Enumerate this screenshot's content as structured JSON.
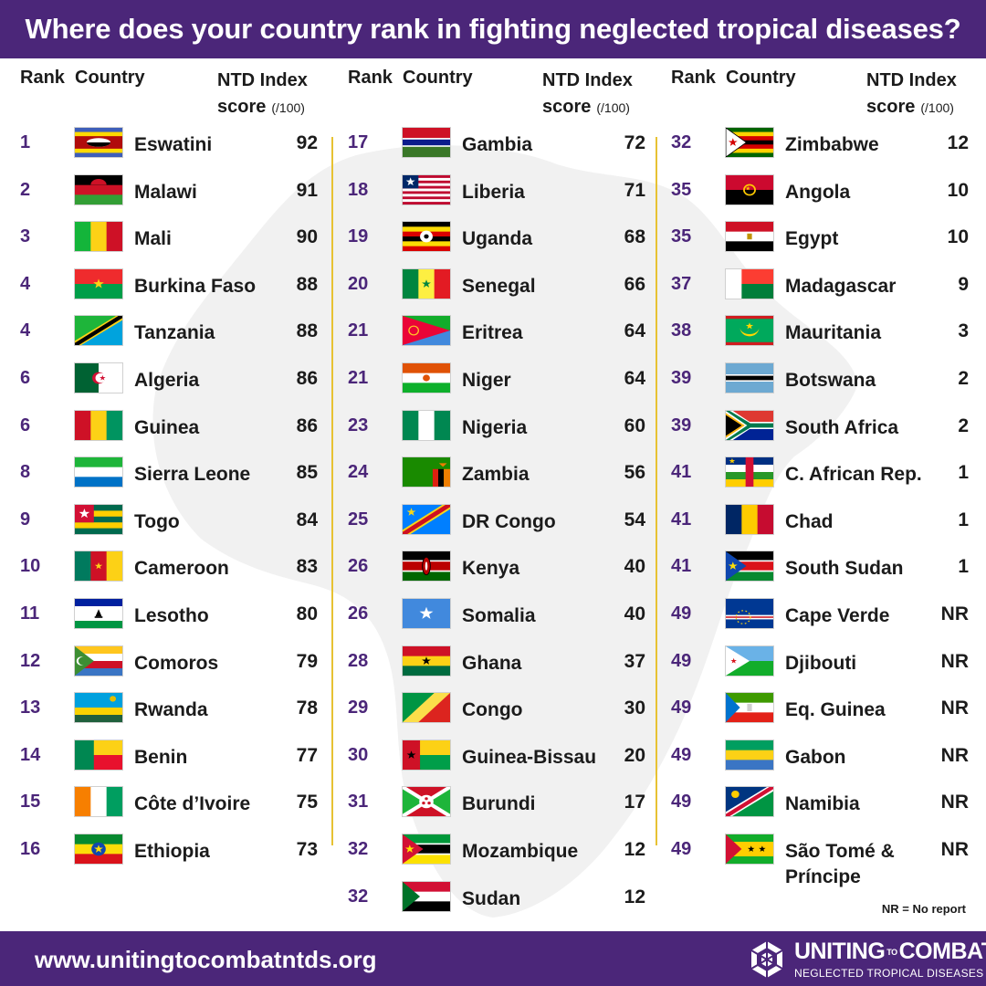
{
  "title": "Where does your country rank in fighting neglected tropical diseases?",
  "headers": {
    "rank": "Rank",
    "country": "Country",
    "score_line1": "NTD Index",
    "score_line2": "score",
    "score_unit": "(/100)"
  },
  "columns": [
    [
      {
        "rank": "1",
        "country": "Eswatini",
        "score": "92",
        "flag": "eswatini"
      },
      {
        "rank": "2",
        "country": "Malawi",
        "score": "91",
        "flag": "malawi"
      },
      {
        "rank": "3",
        "country": "Mali",
        "score": "90",
        "flag": "mali"
      },
      {
        "rank": "4",
        "country": "Burkina Faso",
        "score": "88",
        "flag": "burkina-faso"
      },
      {
        "rank": "4",
        "country": "Tanzania",
        "score": "88",
        "flag": "tanzania"
      },
      {
        "rank": "6",
        "country": "Algeria",
        "score": "86",
        "flag": "algeria"
      },
      {
        "rank": "6",
        "country": "Guinea",
        "score": "86",
        "flag": "guinea"
      },
      {
        "rank": "8",
        "country": "Sierra Leone",
        "score": "85",
        "flag": "sierra-leone"
      },
      {
        "rank": "9",
        "country": "Togo",
        "score": "84",
        "flag": "togo"
      },
      {
        "rank": "10",
        "country": "Cameroon",
        "score": "83",
        "flag": "cameroon"
      },
      {
        "rank": "11",
        "country": "Lesotho",
        "score": "80",
        "flag": "lesotho"
      },
      {
        "rank": "12",
        "country": "Comoros",
        "score": "79",
        "flag": "comoros"
      },
      {
        "rank": "13",
        "country": "Rwanda",
        "score": "78",
        "flag": "rwanda"
      },
      {
        "rank": "14",
        "country": "Benin",
        "score": "77",
        "flag": "benin"
      },
      {
        "rank": "15",
        "country": "Côte d’Ivoire",
        "score": "75",
        "flag": "cote-divoire"
      },
      {
        "rank": "16",
        "country": "Ethiopia",
        "score": "73",
        "flag": "ethiopia"
      }
    ],
    [
      {
        "rank": "17",
        "country": "Gambia",
        "score": "72",
        "flag": "gambia"
      },
      {
        "rank": "18",
        "country": "Liberia",
        "score": "71",
        "flag": "liberia"
      },
      {
        "rank": "19",
        "country": "Uganda",
        "score": "68",
        "flag": "uganda"
      },
      {
        "rank": "20",
        "country": "Senegal",
        "score": "66",
        "flag": "senegal"
      },
      {
        "rank": "21",
        "country": "Eritrea",
        "score": "64",
        "flag": "eritrea"
      },
      {
        "rank": "21",
        "country": "Niger",
        "score": "64",
        "flag": "niger"
      },
      {
        "rank": "23",
        "country": "Nigeria",
        "score": "60",
        "flag": "nigeria"
      },
      {
        "rank": "24",
        "country": "Zambia",
        "score": "56",
        "flag": "zambia"
      },
      {
        "rank": "25",
        "country": "DR Congo",
        "score": "54",
        "flag": "dr-congo"
      },
      {
        "rank": "26",
        "country": "Kenya",
        "score": "40",
        "flag": "kenya"
      },
      {
        "rank": "26",
        "country": "Somalia",
        "score": "40",
        "flag": "somalia"
      },
      {
        "rank": "28",
        "country": "Ghana",
        "score": "37",
        "flag": "ghana"
      },
      {
        "rank": "29",
        "country": "Congo",
        "score": "30",
        "flag": "congo"
      },
      {
        "rank": "30",
        "country": "Guinea-Bissau",
        "score": "20",
        "flag": "guinea-bissau"
      },
      {
        "rank": "31",
        "country": "Burundi",
        "score": "17",
        "flag": "burundi"
      },
      {
        "rank": "32",
        "country": "Mozambique",
        "score": "12",
        "flag": "mozambique"
      },
      {
        "rank": "32",
        "country": "Sudan",
        "score": "12",
        "flag": "sudan"
      }
    ],
    [
      {
        "rank": "32",
        "country": "Zimbabwe",
        "score": "12",
        "flag": "zimbabwe"
      },
      {
        "rank": "35",
        "country": "Angola",
        "score": "10",
        "flag": "angola"
      },
      {
        "rank": "35",
        "country": "Egypt",
        "score": "10",
        "flag": "egypt"
      },
      {
        "rank": "37",
        "country": "Madagascar",
        "score": "9",
        "flag": "madagascar"
      },
      {
        "rank": "38",
        "country": "Mauritania",
        "score": "3",
        "flag": "mauritania"
      },
      {
        "rank": "39",
        "country": "Botswana",
        "score": "2",
        "flag": "botswana"
      },
      {
        "rank": "39",
        "country": "South Africa",
        "score": "2",
        "flag": "south-africa"
      },
      {
        "rank": "41",
        "country": "C. African Rep.",
        "score": "1",
        "flag": "central-african-republic"
      },
      {
        "rank": "41",
        "country": "Chad",
        "score": "1",
        "flag": "chad"
      },
      {
        "rank": "41",
        "country": "South Sudan",
        "score": "1",
        "flag": "south-sudan"
      },
      {
        "rank": "49",
        "country": "Cape Verde",
        "score": "NR",
        "flag": "cape-verde"
      },
      {
        "rank": "49",
        "country": "Djibouti",
        "score": "NR",
        "flag": "djibouti"
      },
      {
        "rank": "49",
        "country": "Eq. Guinea",
        "score": "NR",
        "flag": "equatorial-guinea"
      },
      {
        "rank": "49",
        "country": "Gabon",
        "score": "NR",
        "flag": "gabon"
      },
      {
        "rank": "49",
        "country": "Namibia",
        "score": "NR",
        "flag": "namibia"
      },
      {
        "rank": "49",
        "country": "São Tomé & Príncipe",
        "score": "NR",
        "flag": "sao-tome-and-principe"
      }
    ]
  ],
  "note": "NR = No report",
  "footer": {
    "url": "www.unitingtocombatntds.org",
    "logo_word1": "UNITING",
    "logo_to": "TO",
    "logo_word2": "COMBAT",
    "logo_tagline": "NEGLECTED TROPICAL DISEASES"
  },
  "colors": {
    "purple": "#4b2679",
    "divider": "#e7c233",
    "rank_text": "#4b2679"
  }
}
